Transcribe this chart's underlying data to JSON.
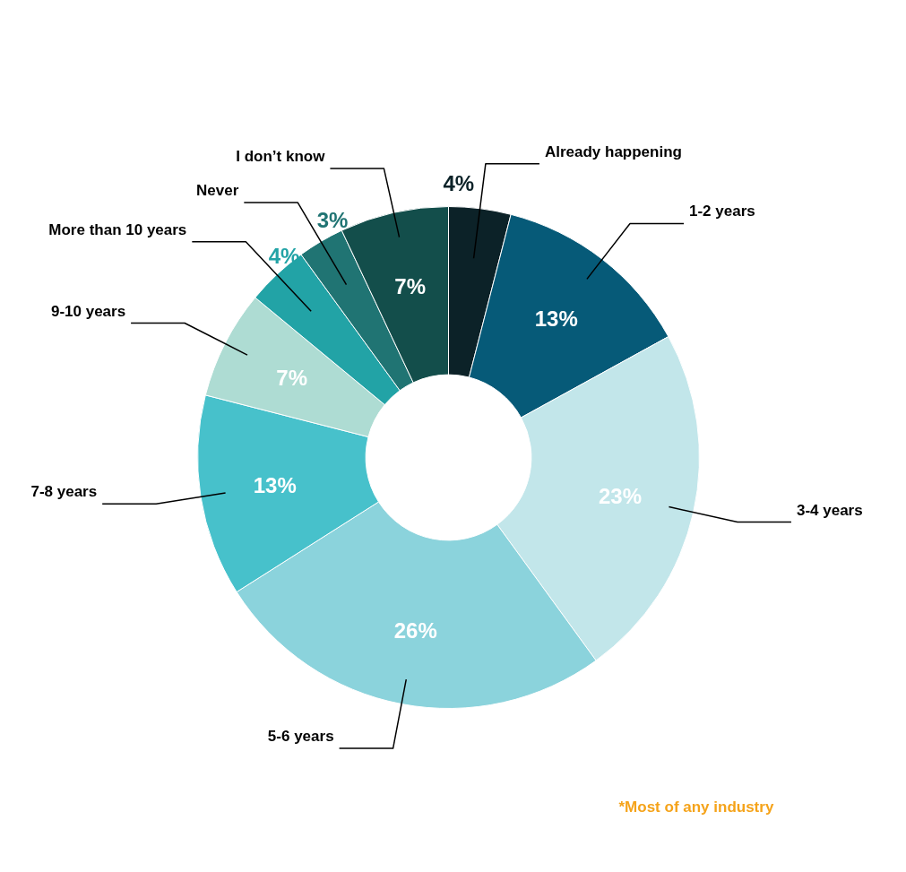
{
  "chart_data": {
    "type": "donut",
    "categories": [
      "Already happening",
      "1-2 years",
      "3-4 years",
      "5-6 years",
      "7-8 years",
      "9-10 years",
      "More than 10 years",
      "Never",
      "I don’t know"
    ],
    "values": [
      4,
      13,
      23,
      26,
      13,
      7,
      4,
      3,
      7
    ],
    "colors": [
      "#0c2228",
      "#065a78",
      "#c2e6ea",
      "#8bd3dc",
      "#47c1cb",
      "#aedcd3",
      "#22a3a6",
      "#207473",
      "#134e4b"
    ],
    "value_labels": [
      "4%",
      "13%",
      "23%",
      "26%",
      "13%",
      "7%",
      "4%",
      "3%",
      "7%"
    ],
    "annotations": [
      "*Most of any industry"
    ]
  }
}
